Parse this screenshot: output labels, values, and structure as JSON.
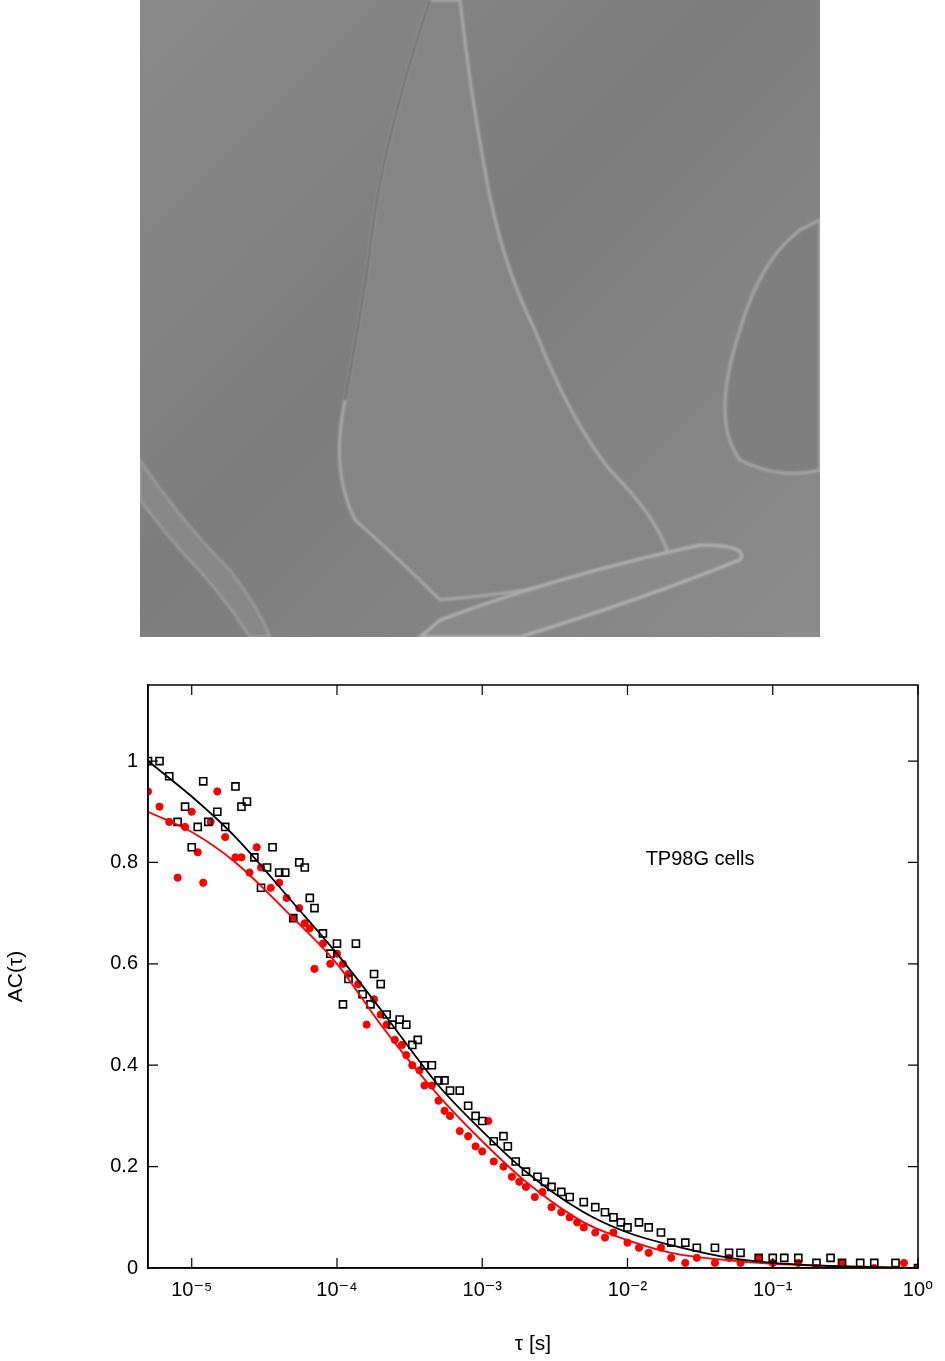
{
  "chart_data": {
    "type": "scatter",
    "x_label": "τ [s]",
    "y_label": "AC(τ)",
    "annotations": [
      "TP98G cells"
    ],
    "log": "x",
    "grid": false,
    "xlim": [
      5e-06,
      1
    ],
    "xticks": [
      {
        "value": 1e-05,
        "label": "10⁻⁵"
      },
      {
        "value": 0.0001,
        "label": "10⁻⁴"
      },
      {
        "value": 0.001,
        "label": "10⁻³"
      },
      {
        "value": 0.01,
        "label": "10⁻²"
      },
      {
        "value": 0.1,
        "label": "10⁻¹"
      },
      {
        "value": 1,
        "label": "10⁰"
      }
    ],
    "ylim": [
      0,
      1.15
    ],
    "yticks": [
      0,
      0.2,
      0.4,
      0.6,
      0.8,
      1
    ],
    "series": [
      {
        "type": "scatter",
        "color": "#000000",
        "marker": "square",
        "x": [
          5e-06,
          6e-06,
          7e-06,
          8e-06,
          9e-06,
          1e-05,
          1.1e-05,
          1.2e-05,
          1.3e-05,
          1.5e-05,
          1.7e-05,
          2e-05,
          2.2e-05,
          2.4e-05,
          2.7e-05,
          3e-05,
          3.3e-05,
          3.6e-05,
          4e-05,
          4.4e-05,
          5e-05,
          5.5e-05,
          6e-05,
          6.5e-05,
          7e-05,
          8e-05,
          9e-05,
          0.0001,
          0.00011,
          0.00012,
          0.000135,
          0.00015,
          0.00017,
          0.00018,
          0.0002,
          0.00022,
          0.00024,
          0.00027,
          0.0003,
          0.00033,
          0.00036,
          0.0004,
          0.00045,
          0.0005,
          0.00055,
          0.0006,
          0.0007,
          0.0008,
          0.0009,
          0.001,
          0.0012,
          0.0014,
          0.0015,
          0.0017,
          0.002,
          0.0024,
          0.0027,
          0.003,
          0.0035,
          0.004,
          0.005,
          0.006,
          0.007,
          0.008,
          0.009,
          0.01,
          0.012,
          0.014,
          0.017,
          0.02,
          0.025,
          0.03,
          0.04,
          0.05,
          0.06,
          0.08,
          0.1,
          0.12,
          0.15,
          0.2,
          0.25,
          0.3,
          0.4,
          0.5,
          0.7,
          1
        ],
        "values": [
          1.0,
          1.0,
          0.97,
          0.88,
          0.91,
          0.83,
          0.87,
          0.96,
          0.88,
          0.9,
          0.87,
          0.95,
          0.91,
          0.92,
          0.81,
          0.75,
          0.79,
          0.83,
          0.78,
          0.78,
          0.69,
          0.8,
          0.79,
          0.73,
          0.71,
          0.66,
          0.62,
          0.64,
          0.52,
          0.57,
          0.64,
          0.54,
          0.52,
          0.58,
          0.56,
          0.5,
          0.48,
          0.49,
          0.48,
          0.44,
          0.45,
          0.4,
          0.4,
          0.37,
          0.37,
          0.35,
          0.35,
          0.32,
          0.3,
          0.29,
          0.25,
          0.26,
          0.24,
          0.21,
          0.19,
          0.18,
          0.17,
          0.16,
          0.15,
          0.14,
          0.13,
          0.12,
          0.11,
          0.1,
          0.09,
          0.08,
          0.09,
          0.08,
          0.07,
          0.05,
          0.05,
          0.04,
          0.04,
          0.03,
          0.03,
          0.02,
          0.02,
          0.02,
          0.02,
          0.01,
          0.02,
          0.01,
          0.01,
          0.01,
          0.01,
          0.0
        ]
      },
      {
        "type": "scatter",
        "color": "#ff0000",
        "marker": "circle",
        "x": [
          5e-06,
          6e-06,
          7e-06,
          8e-06,
          9e-06,
          1e-05,
          1.1e-05,
          1.2e-05,
          1.35e-05,
          1.5e-05,
          1.7e-05,
          2e-05,
          2.2e-05,
          2.5e-05,
          2.8e-05,
          3e-05,
          3.5e-05,
          4e-05,
          4.5e-05,
          5e-05,
          5.5e-05,
          6e-05,
          6.5e-05,
          7e-05,
          8e-05,
          9e-05,
          0.0001,
          0.00011,
          0.00012,
          0.00014,
          0.00016,
          0.00018,
          0.0002,
          0.00022,
          0.00025,
          0.00028,
          0.0003,
          0.00033,
          0.00037,
          0.0004,
          0.00045,
          0.0005,
          0.00055,
          0.0006,
          0.0007,
          0.0008,
          0.0009,
          0.001,
          0.0011,
          0.0012,
          0.0014,
          0.0016,
          0.0018,
          0.002,
          0.0023,
          0.0026,
          0.003,
          0.0035,
          0.004,
          0.0045,
          0.005,
          0.006,
          0.007,
          0.008,
          0.01,
          0.012,
          0.014,
          0.017,
          0.02,
          0.025,
          0.03,
          0.04,
          0.05,
          0.06,
          0.08,
          0.1,
          0.15,
          0.2,
          0.3,
          0.5,
          0.8,
          1
        ],
        "values": [
          0.94,
          0.91,
          0.88,
          0.77,
          0.87,
          0.9,
          0.82,
          0.76,
          0.88,
          0.94,
          0.85,
          0.81,
          0.81,
          0.78,
          0.83,
          0.79,
          0.75,
          0.76,
          0.73,
          0.69,
          0.71,
          0.68,
          0.67,
          0.59,
          0.64,
          0.6,
          0.62,
          0.6,
          0.58,
          0.56,
          0.48,
          0.53,
          0.5,
          0.48,
          0.45,
          0.44,
          0.42,
          0.4,
          0.39,
          0.36,
          0.36,
          0.33,
          0.31,
          0.3,
          0.27,
          0.26,
          0.24,
          0.23,
          0.29,
          0.21,
          0.2,
          0.18,
          0.17,
          0.16,
          0.14,
          0.15,
          0.12,
          0.11,
          0.1,
          0.09,
          0.08,
          0.07,
          0.06,
          0.07,
          0.05,
          0.04,
          0.03,
          0.04,
          0.02,
          0.01,
          0.02,
          0.01,
          0.02,
          0.01,
          0.02,
          0.01,
          0.01,
          0.0,
          0.01,
          0.0,
          0.01,
          0.0
        ]
      },
      {
        "type": "line",
        "color": "#000000",
        "line_style": "solid",
        "x": [
          5e-06,
          1e-05,
          2e-05,
          5e-05,
          0.0001,
          0.0002,
          0.0005,
          0.001,
          0.002,
          0.005,
          0.01,
          0.02,
          0.05,
          0.1,
          0.2,
          1
        ],
        "values": [
          1.0,
          0.93,
          0.85,
          0.72,
          0.62,
          0.51,
          0.36,
          0.27,
          0.19,
          0.11,
          0.07,
          0.045,
          0.02,
          0.01,
          0.005,
          0.0
        ]
      },
      {
        "type": "line",
        "color": "#ff0000",
        "line_style": "solid",
        "x": [
          5e-06,
          1e-05,
          2e-05,
          5e-05,
          0.0001,
          0.0002,
          0.0005,
          0.001,
          0.002,
          0.005,
          0.01,
          0.02,
          0.05,
          0.1,
          1
        ],
        "values": [
          0.9,
          0.86,
          0.8,
          0.69,
          0.6,
          0.48,
          0.34,
          0.25,
          0.17,
          0.09,
          0.055,
          0.03,
          0.015,
          0.008,
          0.0
        ]
      }
    ]
  }
}
